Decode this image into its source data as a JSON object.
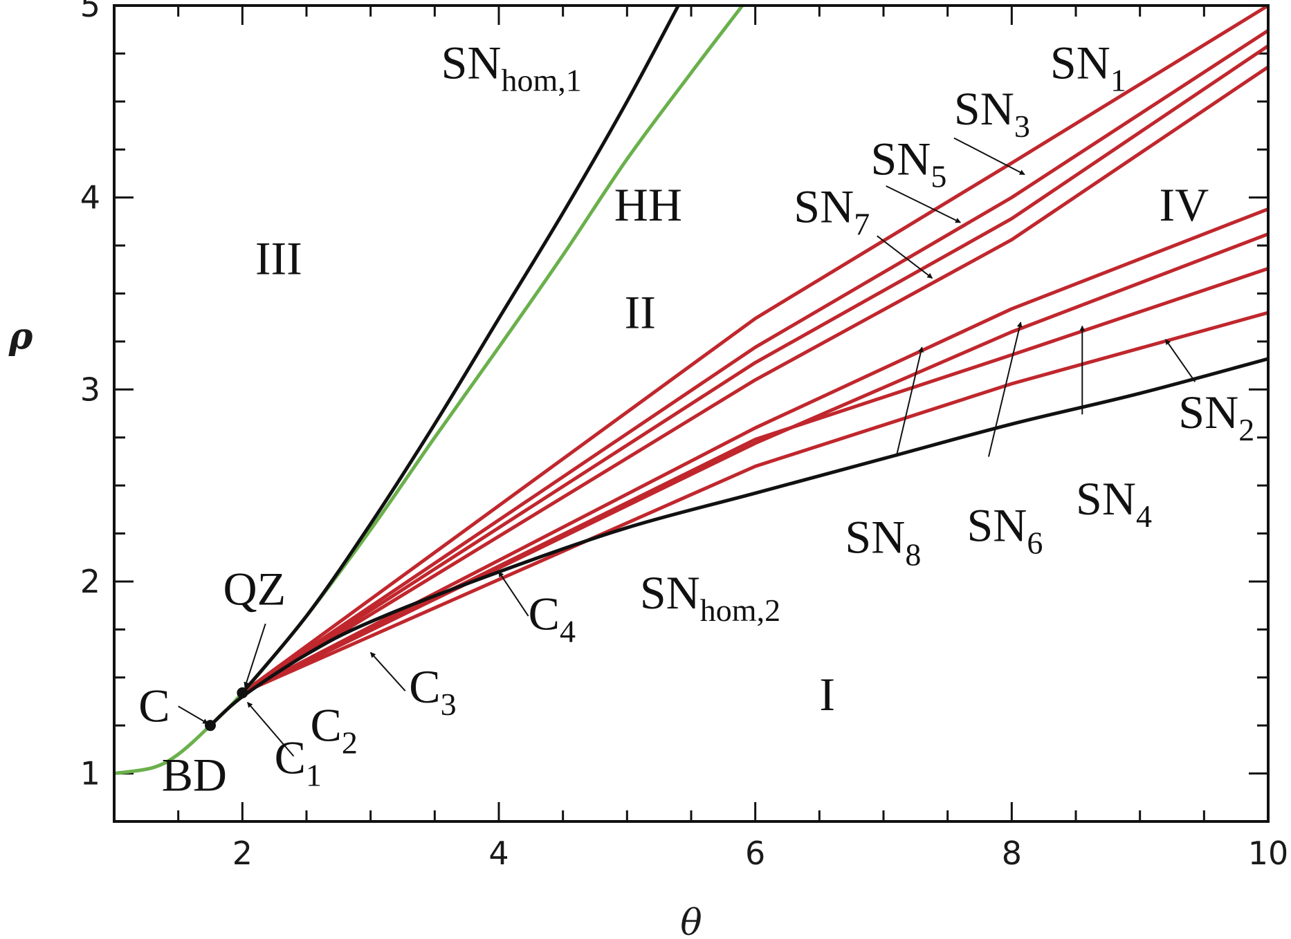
{
  "chart_data": {
    "type": "line",
    "xlabel": "θ",
    "ylabel": "ρ",
    "xlim": [
      1,
      10
    ],
    "ylim": [
      0.75,
      5
    ],
    "xticks": [
      "2",
      "4",
      "6",
      "8",
      "10"
    ],
    "yticks": [
      "1",
      "2",
      "3",
      "4",
      "5"
    ],
    "grid": false,
    "colors": {
      "black_curves": "#111111",
      "green_curve": "#6ab04c",
      "red_curves": "#c0272d"
    },
    "series": [
      {
        "id": "sn_hom_1",
        "color": "black",
        "x": [
          2.0,
          2.5,
          3.0,
          3.5,
          4.0,
          4.5,
          5.0,
          5.4
        ],
        "y": [
          1.42,
          1.82,
          2.3,
          2.82,
          3.37,
          3.92,
          4.5,
          5.0
        ]
      },
      {
        "id": "bd",
        "color": "green",
        "x": [
          1.0,
          1.3,
          1.5,
          1.75,
          2.0,
          2.5,
          3.0,
          3.5,
          4.0,
          4.5,
          5.0,
          5.5,
          5.9
        ],
        "y": [
          1.0,
          1.03,
          1.1,
          1.25,
          1.42,
          1.82,
          2.27,
          2.75,
          3.22,
          3.7,
          4.2,
          4.65,
          5.0
        ]
      },
      {
        "id": "sn_hom_2",
        "color": "black",
        "x": [
          1.75,
          2.0,
          2.5,
          3.0,
          4.0,
          5.0,
          6.0,
          7.0,
          8.0,
          9.0,
          10.0
        ],
        "y": [
          1.25,
          1.4,
          1.62,
          1.79,
          2.05,
          2.28,
          2.46,
          2.64,
          2.82,
          2.98,
          3.16
        ]
      },
      {
        "id": "sn_1",
        "color": "red",
        "x": [
          2.0,
          6.0,
          8.0,
          10.0
        ],
        "y": [
          1.42,
          3.37,
          4.18,
          5.0
        ]
      },
      {
        "id": "sn_3",
        "color": "red",
        "x": [
          2.0,
          6.0,
          8.0,
          10.0
        ],
        "y": [
          1.42,
          3.22,
          4.0,
          4.87
        ]
      },
      {
        "id": "sn_5",
        "color": "red",
        "x": [
          2.0,
          6.0,
          8.0,
          10.0
        ],
        "y": [
          1.42,
          3.14,
          3.89,
          4.79
        ]
      },
      {
        "id": "sn_7",
        "color": "red",
        "x": [
          2.0,
          6.0,
          8.0,
          10.0
        ],
        "y": [
          1.42,
          3.05,
          3.78,
          4.68
        ]
      },
      {
        "id": "sn_8",
        "color": "red",
        "x": [
          2.0,
          6.0,
          8.0,
          10.0
        ],
        "y": [
          1.42,
          2.8,
          3.42,
          3.94
        ]
      },
      {
        "id": "sn_6",
        "color": "red",
        "x": [
          2.0,
          6.0,
          8.0,
          10.0
        ],
        "y": [
          1.42,
          2.72,
          3.3,
          3.81
        ]
      },
      {
        "id": "sn_4",
        "color": "red",
        "x": [
          2.0,
          6.0,
          8.0,
          10.0
        ],
        "y": [
          1.42,
          2.74,
          3.18,
          3.63
        ]
      },
      {
        "id": "sn_2",
        "color": "red",
        "x": [
          2.0,
          6.0,
          8.0,
          10.0
        ],
        "y": [
          1.42,
          2.6,
          3.03,
          3.4
        ]
      }
    ],
    "points": [
      {
        "id": "point_c",
        "x": 1.75,
        "y": 1.25
      },
      {
        "id": "point_qz",
        "x": 2.0,
        "y": 1.42
      }
    ],
    "annotations": [
      {
        "id": "sn_hom_1",
        "text": "SN",
        "sub": "hom,1",
        "x": 3.55,
        "y": 4.62
      },
      {
        "id": "hh",
        "text": "HH",
        "sub": "",
        "x": 4.9,
        "y": 3.88
      },
      {
        "id": "region_ii",
        "text": "II",
        "sub": "",
        "x": 4.98,
        "y": 3.32
      },
      {
        "id": "region_iii",
        "text": "III",
        "sub": "",
        "x": 2.1,
        "y": 3.6
      },
      {
        "id": "region_iv",
        "text": "IV",
        "sub": "",
        "x": 9.15,
        "y": 3.88
      },
      {
        "id": "region_i",
        "text": "I",
        "sub": "",
        "x": 6.5,
        "y": 1.33
      },
      {
        "id": "sn_1",
        "text": "SN",
        "sub": "1",
        "x": 8.3,
        "y": 4.62
      },
      {
        "id": "sn_3",
        "text": "SN",
        "sub": "3",
        "x": 7.55,
        "y": 4.38
      },
      {
        "id": "sn_5",
        "text": "SN",
        "sub": "5",
        "x": 6.9,
        "y": 4.12
      },
      {
        "id": "sn_7",
        "text": "SN",
        "sub": "7",
        "x": 6.3,
        "y": 3.87
      },
      {
        "id": "sn_8",
        "text": "SN",
        "sub": "8",
        "x": 6.7,
        "y": 2.15
      },
      {
        "id": "sn_6",
        "text": "SN",
        "sub": "6",
        "x": 7.65,
        "y": 2.21
      },
      {
        "id": "sn_4",
        "text": "SN",
        "sub": "4",
        "x": 8.5,
        "y": 2.35
      },
      {
        "id": "sn_2",
        "text": "SN",
        "sub": "2",
        "x": 9.3,
        "y": 2.8
      },
      {
        "id": "sn_hom_2",
        "text": "SN",
        "sub": "hom,2",
        "x": 5.1,
        "y": 1.86
      },
      {
        "id": "qz",
        "text": "QZ",
        "sub": "",
        "x": 1.85,
        "y": 1.88
      },
      {
        "id": "c",
        "text": "C",
        "sub": "",
        "x": 1.19,
        "y": 1.27
      },
      {
        "id": "c1",
        "text": "C",
        "sub": "1",
        "x": 2.25,
        "y": 1.0
      },
      {
        "id": "c2",
        "text": "C",
        "sub": "2",
        "x": 2.53,
        "y": 1.17
      },
      {
        "id": "c3",
        "text": "C",
        "sub": "3",
        "x": 3.3,
        "y": 1.37
      },
      {
        "id": "c4",
        "text": "C",
        "sub": "4",
        "x": 4.23,
        "y": 1.75
      },
      {
        "id": "bd",
        "text": "BD",
        "sub": "",
        "x": 1.37,
        "y": 0.91
      }
    ],
    "arrows": [
      {
        "id": "arrow-c",
        "from": [
          1.5,
          1.35
        ],
        "to": [
          1.73,
          1.26
        ]
      },
      {
        "id": "arrow-qz",
        "from": [
          2.18,
          1.78
        ],
        "to": [
          2.02,
          1.45
        ]
      },
      {
        "id": "arrow-c1",
        "from": [
          2.4,
          1.09
        ],
        "to": [
          2.04,
          1.37
        ]
      },
      {
        "id": "arrow-c3",
        "from": [
          3.27,
          1.43
        ],
        "to": [
          3.0,
          1.63
        ]
      },
      {
        "id": "arrow-c4",
        "from": [
          4.23,
          1.82
        ],
        "to": [
          4.0,
          2.05
        ]
      },
      {
        "id": "arrow-sn3",
        "from": [
          7.55,
          4.31
        ],
        "to": [
          8.1,
          4.12
        ]
      },
      {
        "id": "arrow-sn5",
        "from": [
          7.02,
          4.06
        ],
        "to": [
          7.6,
          3.87
        ]
      },
      {
        "id": "arrow-sn7",
        "from": [
          6.95,
          3.8
        ],
        "to": [
          7.38,
          3.58
        ]
      },
      {
        "id": "arrow-sn8",
        "from": [
          7.1,
          2.65
        ],
        "to": [
          7.3,
          3.22
        ]
      },
      {
        "id": "arrow-sn6",
        "from": [
          7.82,
          2.65
        ],
        "to": [
          8.07,
          3.35
        ]
      },
      {
        "id": "arrow-sn4",
        "from": [
          8.55,
          2.87
        ],
        "to": [
          8.55,
          3.33
        ]
      },
      {
        "id": "arrow-sn2",
        "from": [
          9.43,
          3.04
        ],
        "to": [
          9.2,
          3.26
        ]
      }
    ]
  }
}
